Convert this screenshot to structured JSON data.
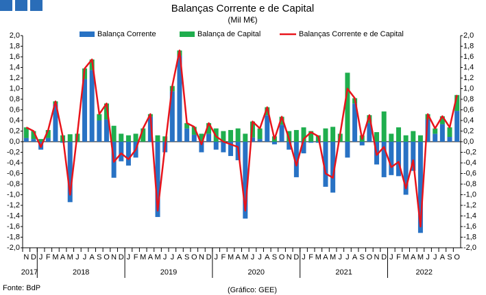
{
  "chart_data": {
    "type": "bar",
    "stacked": true,
    "title": "Balanças Corrente e de Capital",
    "subtitle": "(Mil M€)",
    "source": "Fonte: BdP",
    "credit": "(Gráfico: GEE)",
    "categories": [
      "N",
      "D",
      "J",
      "F",
      "M",
      "A",
      "M",
      "J",
      "J",
      "A",
      "S",
      "O",
      "N",
      "D",
      "J",
      "F",
      "M",
      "A",
      "M",
      "J",
      "J",
      "A",
      "S",
      "O",
      "N",
      "D",
      "J",
      "F",
      "M",
      "A",
      "M",
      "J",
      "J",
      "A",
      "S",
      "O",
      "N",
      "D",
      "J",
      "F",
      "M",
      "A",
      "M",
      "J",
      "J",
      "A",
      "S",
      "O",
      "N",
      "D",
      "J",
      "F",
      "M",
      "A",
      "M",
      "J",
      "J",
      "A",
      "S",
      "O"
    ],
    "year_groups": [
      "2017",
      "2018",
      "2019",
      "2020",
      "2021",
      "2022"
    ],
    "series": [
      {
        "name": "Balança Corrente",
        "color": "#2872c4",
        "kind": "bar",
        "values": [
          0.07,
          0.05,
          -0.15,
          0.07,
          0.71,
          -0.02,
          -1.14,
          0.0,
          1.18,
          1.35,
          0.4,
          0.42,
          -0.68,
          -0.37,
          -0.45,
          -0.3,
          0.0,
          0.47,
          -1.42,
          -0.2,
          0.95,
          1.62,
          0.25,
          0.13,
          -0.2,
          0.15,
          -0.15,
          -0.2,
          -0.27,
          -0.35,
          -1.45,
          0.08,
          0.05,
          0.5,
          -0.05,
          0.32,
          -0.15,
          -0.67,
          -0.22,
          -0.02,
          -0.02,
          -0.85,
          -0.96,
          0.0,
          -0.3,
          0.72,
          -0.07,
          0.35,
          -0.43,
          -0.67,
          -0.63,
          -0.65,
          -1.0,
          -0.55,
          -1.72,
          0.42,
          0.15,
          0.33,
          0.09,
          0.58
        ]
      },
      {
        "name": "Balança de Capital",
        "color": "#1fae4e",
        "kind": "bar",
        "values": [
          0.2,
          0.15,
          0.05,
          0.15,
          0.05,
          0.12,
          0.14,
          0.15,
          0.2,
          0.2,
          0.12,
          0.3,
          0.3,
          0.15,
          0.12,
          0.15,
          0.25,
          0.05,
          0.12,
          0.1,
          0.1,
          0.1,
          0.1,
          0.15,
          0.15,
          0.2,
          0.25,
          0.2,
          0.22,
          0.25,
          0.15,
          0.3,
          0.2,
          0.15,
          0.1,
          0.15,
          0.2,
          0.22,
          0.27,
          0.2,
          0.12,
          0.25,
          0.28,
          0.15,
          1.3,
          0.1,
          0.12,
          0.15,
          0.18,
          0.57,
          0.15,
          0.27,
          0.12,
          0.2,
          0.12,
          0.1,
          0.1,
          0.15,
          0.18,
          0.3
        ]
      },
      {
        "name": "Balanças Corrente e de Capital",
        "color": "#e8141b",
        "kind": "line",
        "values": [
          0.27,
          0.2,
          -0.1,
          0.22,
          0.76,
          0.1,
          -1.0,
          0.15,
          1.38,
          1.55,
          0.52,
          0.72,
          -0.38,
          -0.22,
          -0.33,
          -0.15,
          0.25,
          0.52,
          -1.3,
          -0.1,
          1.05,
          1.72,
          0.35,
          0.28,
          -0.05,
          0.35,
          0.1,
          0.0,
          -0.05,
          -0.1,
          -1.3,
          0.38,
          0.25,
          0.65,
          0.05,
          0.47,
          0.05,
          -0.45,
          0.05,
          0.18,
          0.1,
          -0.6,
          -0.68,
          0.15,
          1.0,
          0.82,
          0.05,
          0.5,
          -0.25,
          -0.1,
          -0.48,
          -0.38,
          -0.88,
          -0.35,
          -1.6,
          0.52,
          0.25,
          0.48,
          0.27,
          0.88
        ]
      }
    ],
    "ylim": [
      -2.0,
      2.0
    ],
    "yticks": [
      {
        "value": -2.0,
        "label": "-2,0"
      },
      {
        "value": -1.8,
        "label": "-1,8"
      },
      {
        "value": -1.6,
        "label": "-1,6"
      },
      {
        "value": -1.4,
        "label": "-1,4"
      },
      {
        "value": -1.2,
        "label": "-1,2"
      },
      {
        "value": -1.0,
        "label": "-1,0"
      },
      {
        "value": -0.8,
        "label": "-0,8"
      },
      {
        "value": -0.6,
        "label": "-0,6"
      },
      {
        "value": -0.4,
        "label": "-0,4"
      },
      {
        "value": -0.2,
        "label": "-0,2"
      },
      {
        "value": 0.0,
        "label": "0,0"
      },
      {
        "value": 0.2,
        "label": "0,2"
      },
      {
        "value": 0.4,
        "label": "0,4"
      },
      {
        "value": 0.6,
        "label": "0,6"
      },
      {
        "value": 0.8,
        "label": "0,8"
      },
      {
        "value": 1.0,
        "label": "1,0"
      },
      {
        "value": 1.2,
        "label": "1,2"
      },
      {
        "value": 1.4,
        "label": "1,4"
      },
      {
        "value": 1.6,
        "label": "1,6"
      },
      {
        "value": 1.8,
        "label": "1,8"
      },
      {
        "value": 2.0,
        "label": "2,0"
      }
    ],
    "grid": false,
    "legend": "top"
  }
}
